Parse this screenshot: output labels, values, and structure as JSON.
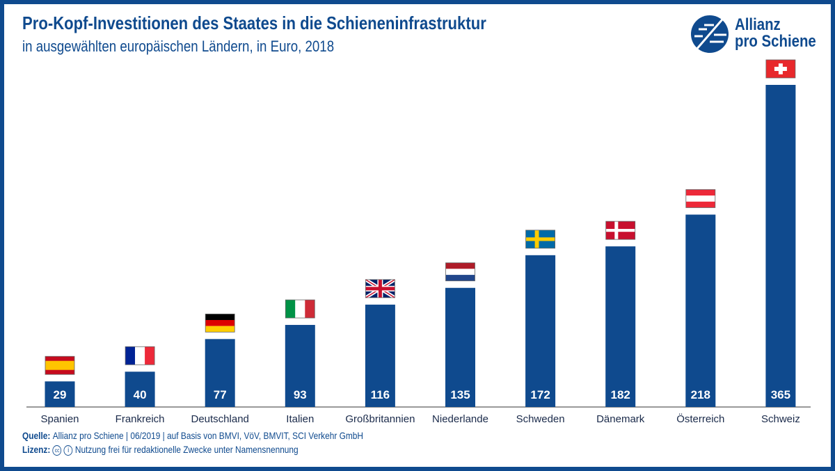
{
  "colors": {
    "bar": "#0f4a8e",
    "text": "#0f4a8e",
    "frame": "#0f4a8e"
  },
  "logo": {
    "line1": "Allianz",
    "line2": "pro Schiene"
  },
  "footer": {
    "source_label": "Quelle:",
    "source_text": "Allianz pro Schiene | 06/2019 | auf Basis von BMVI, VöV, BMVIT, SCI Verkehr GmbH",
    "license_label": "Lizenz:",
    "license_icons": [
      "cc-icon",
      "by-attribution-icon"
    ],
    "license_text": "Nutzung frei für redaktionelle Zwecke unter Namensnennung"
  },
  "chart_data": {
    "type": "bar",
    "title": "Pro-Kopf-Investitionen des Staates in die Schieneninfrastruktur",
    "subtitle": "in ausgewählten europäischen Ländern, in Euro, 2018",
    "categories": [
      "Spanien",
      "Frankreich",
      "Deutschland",
      "Italien",
      "Großbritannien",
      "Niederlande",
      "Schweden",
      "Dänemark",
      "Österreich",
      "Schweiz"
    ],
    "values": [
      29,
      40,
      77,
      93,
      116,
      135,
      172,
      182,
      218,
      365
    ],
    "flags": [
      "es",
      "fr",
      "de",
      "it",
      "gb",
      "nl",
      "se",
      "dk",
      "at",
      "ch"
    ],
    "ylim": [
      0,
      365
    ],
    "grid": false
  }
}
